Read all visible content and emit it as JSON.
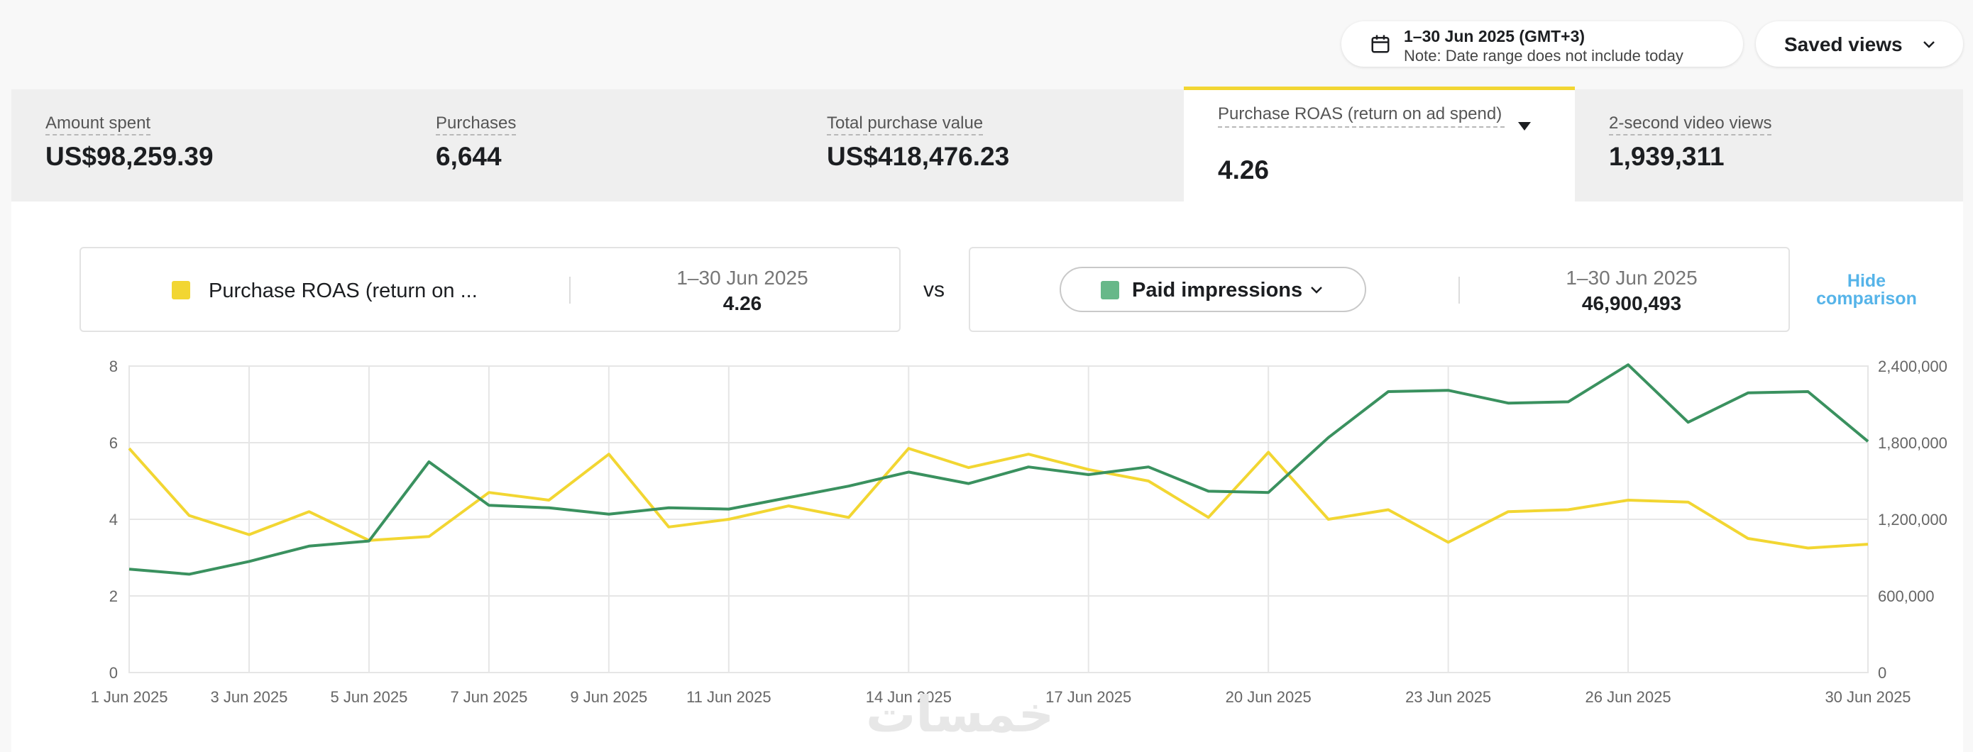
{
  "toolbar": {
    "date_range": "1–30 Jun 2025 (GMT+3)",
    "date_note": "Note: Date range does not include today",
    "saved_views_label": "Saved views"
  },
  "metrics": [
    {
      "label": "Amount spent",
      "value": "US$98,259.39"
    },
    {
      "label": "Purchases",
      "value": "6,644"
    },
    {
      "label": "Total purchase value",
      "value": "US$418,476.23"
    },
    {
      "label": "Purchase ROAS (return on ad spend)",
      "value": "4.26",
      "active": true
    },
    {
      "label": "2-second video views",
      "value": "1,939,311"
    }
  ],
  "comparison": {
    "left": {
      "name": "Purchase ROAS (return on ...",
      "range": "1–30 Jun 2025",
      "value": "4.26",
      "color": "#f2d632"
    },
    "vs_label": "vs",
    "right": {
      "name": "Paid impressions",
      "range": "1–30 Jun 2025",
      "value": "46,900,493",
      "color": "#67b889"
    },
    "hide_label_line1": "Hide",
    "hide_label_line2": "comparison"
  },
  "watermark": "خمسات",
  "chart_data": {
    "type": "line",
    "x": [
      "1 Jun 2025",
      "2 Jun 2025",
      "3 Jun 2025",
      "4 Jun 2025",
      "5 Jun 2025",
      "6 Jun 2025",
      "7 Jun 2025",
      "8 Jun 2025",
      "9 Jun 2025",
      "10 Jun 2025",
      "11 Jun 2025",
      "12 Jun 2025",
      "13 Jun 2025",
      "14 Jun 2025",
      "15 Jun 2025",
      "16 Jun 2025",
      "17 Jun 2025",
      "18 Jun 2025",
      "19 Jun 2025",
      "20 Jun 2025",
      "21 Jun 2025",
      "22 Jun 2025",
      "23 Jun 2025",
      "24 Jun 2025",
      "25 Jun 2025",
      "26 Jun 2025",
      "27 Jun 2025",
      "28 Jun 2025",
      "29 Jun 2025",
      "30 Jun 2025"
    ],
    "x_tick_labels": [
      "1 Jun 2025",
      "3 Jun 2025",
      "5 Jun 2025",
      "7 Jun 2025",
      "9 Jun 2025",
      "11 Jun 2025",
      "14 Jun 2025",
      "17 Jun 2025",
      "20 Jun 2025",
      "23 Jun 2025",
      "26 Jun 2025",
      "30 Jun 2025"
    ],
    "y_left_ticks": [
      "0",
      "2",
      "4",
      "6",
      "8"
    ],
    "y_right_ticks": [
      "0",
      "600,000",
      "1,200,000",
      "1,800,000",
      "2,400,000"
    ],
    "y_left_range": [
      0,
      8
    ],
    "y_right_range": [
      0,
      2400000
    ],
    "grid": true,
    "series": [
      {
        "name": "Purchase ROAS (return on ...",
        "axis": "left",
        "color": "#f2d632",
        "values": [
          5.85,
          4.1,
          3.6,
          4.2,
          3.45,
          3.55,
          4.7,
          4.5,
          5.7,
          3.8,
          4.0,
          4.35,
          4.05,
          5.85,
          5.35,
          5.7,
          5.3,
          5.0,
          4.05,
          5.75,
          4.0,
          4.25,
          3.4,
          4.2,
          4.25,
          4.5,
          4.45,
          3.5,
          3.25,
          3.35
        ]
      },
      {
        "name": "Paid impressions",
        "axis": "right",
        "color": "#3a915f",
        "values": [
          810000,
          770000,
          870000,
          990000,
          1030000,
          1650000,
          1310000,
          1290000,
          1240000,
          1290000,
          1280000,
          1370000,
          1460000,
          1570000,
          1480000,
          1610000,
          1550000,
          1610000,
          1420000,
          1410000,
          1840000,
          2200000,
          2210000,
          2110000,
          2120000,
          2410000,
          1960000,
          2190000,
          2200000,
          1810000
        ]
      }
    ]
  }
}
